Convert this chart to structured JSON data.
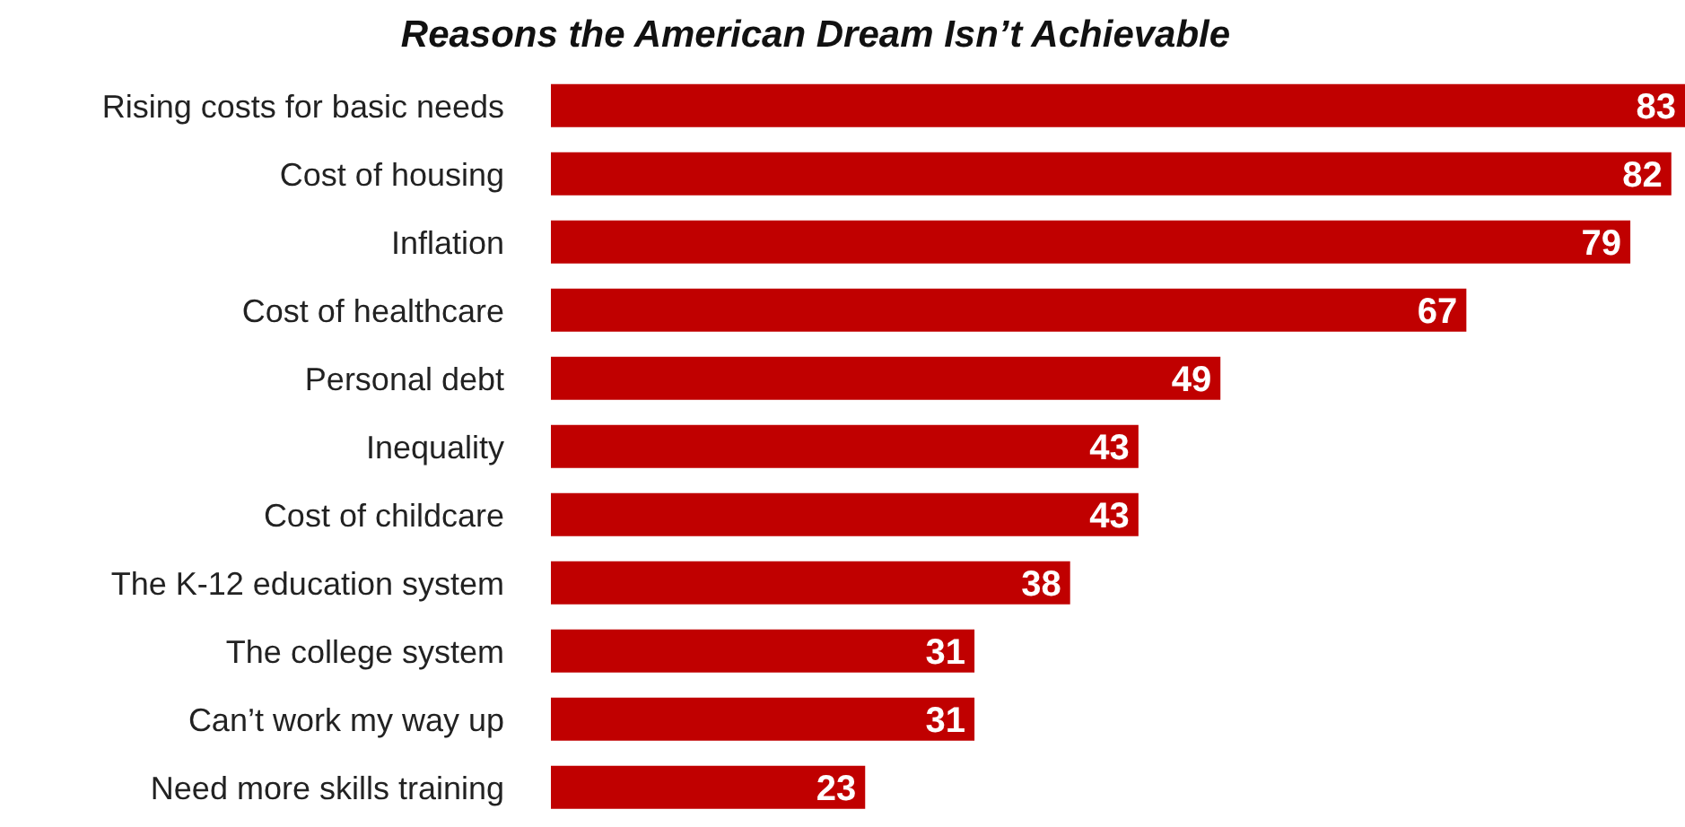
{
  "chart_data": {
    "type": "bar",
    "orientation": "horizontal",
    "title": "Reasons the American Dream Isn’t Achievable",
    "categories": [
      "Rising costs for basic needs",
      "Cost of housing",
      "Inflation",
      "Cost of healthcare",
      "Personal debt",
      "Inequality",
      "Cost of childcare",
      "The K-12 education system",
      "The college system",
      "Can’t work my way up",
      "Need more skills training"
    ],
    "values": [
      83,
      82,
      79,
      67,
      49,
      43,
      43,
      38,
      31,
      31,
      23
    ],
    "color": "#c00000",
    "data_labels": true
  }
}
